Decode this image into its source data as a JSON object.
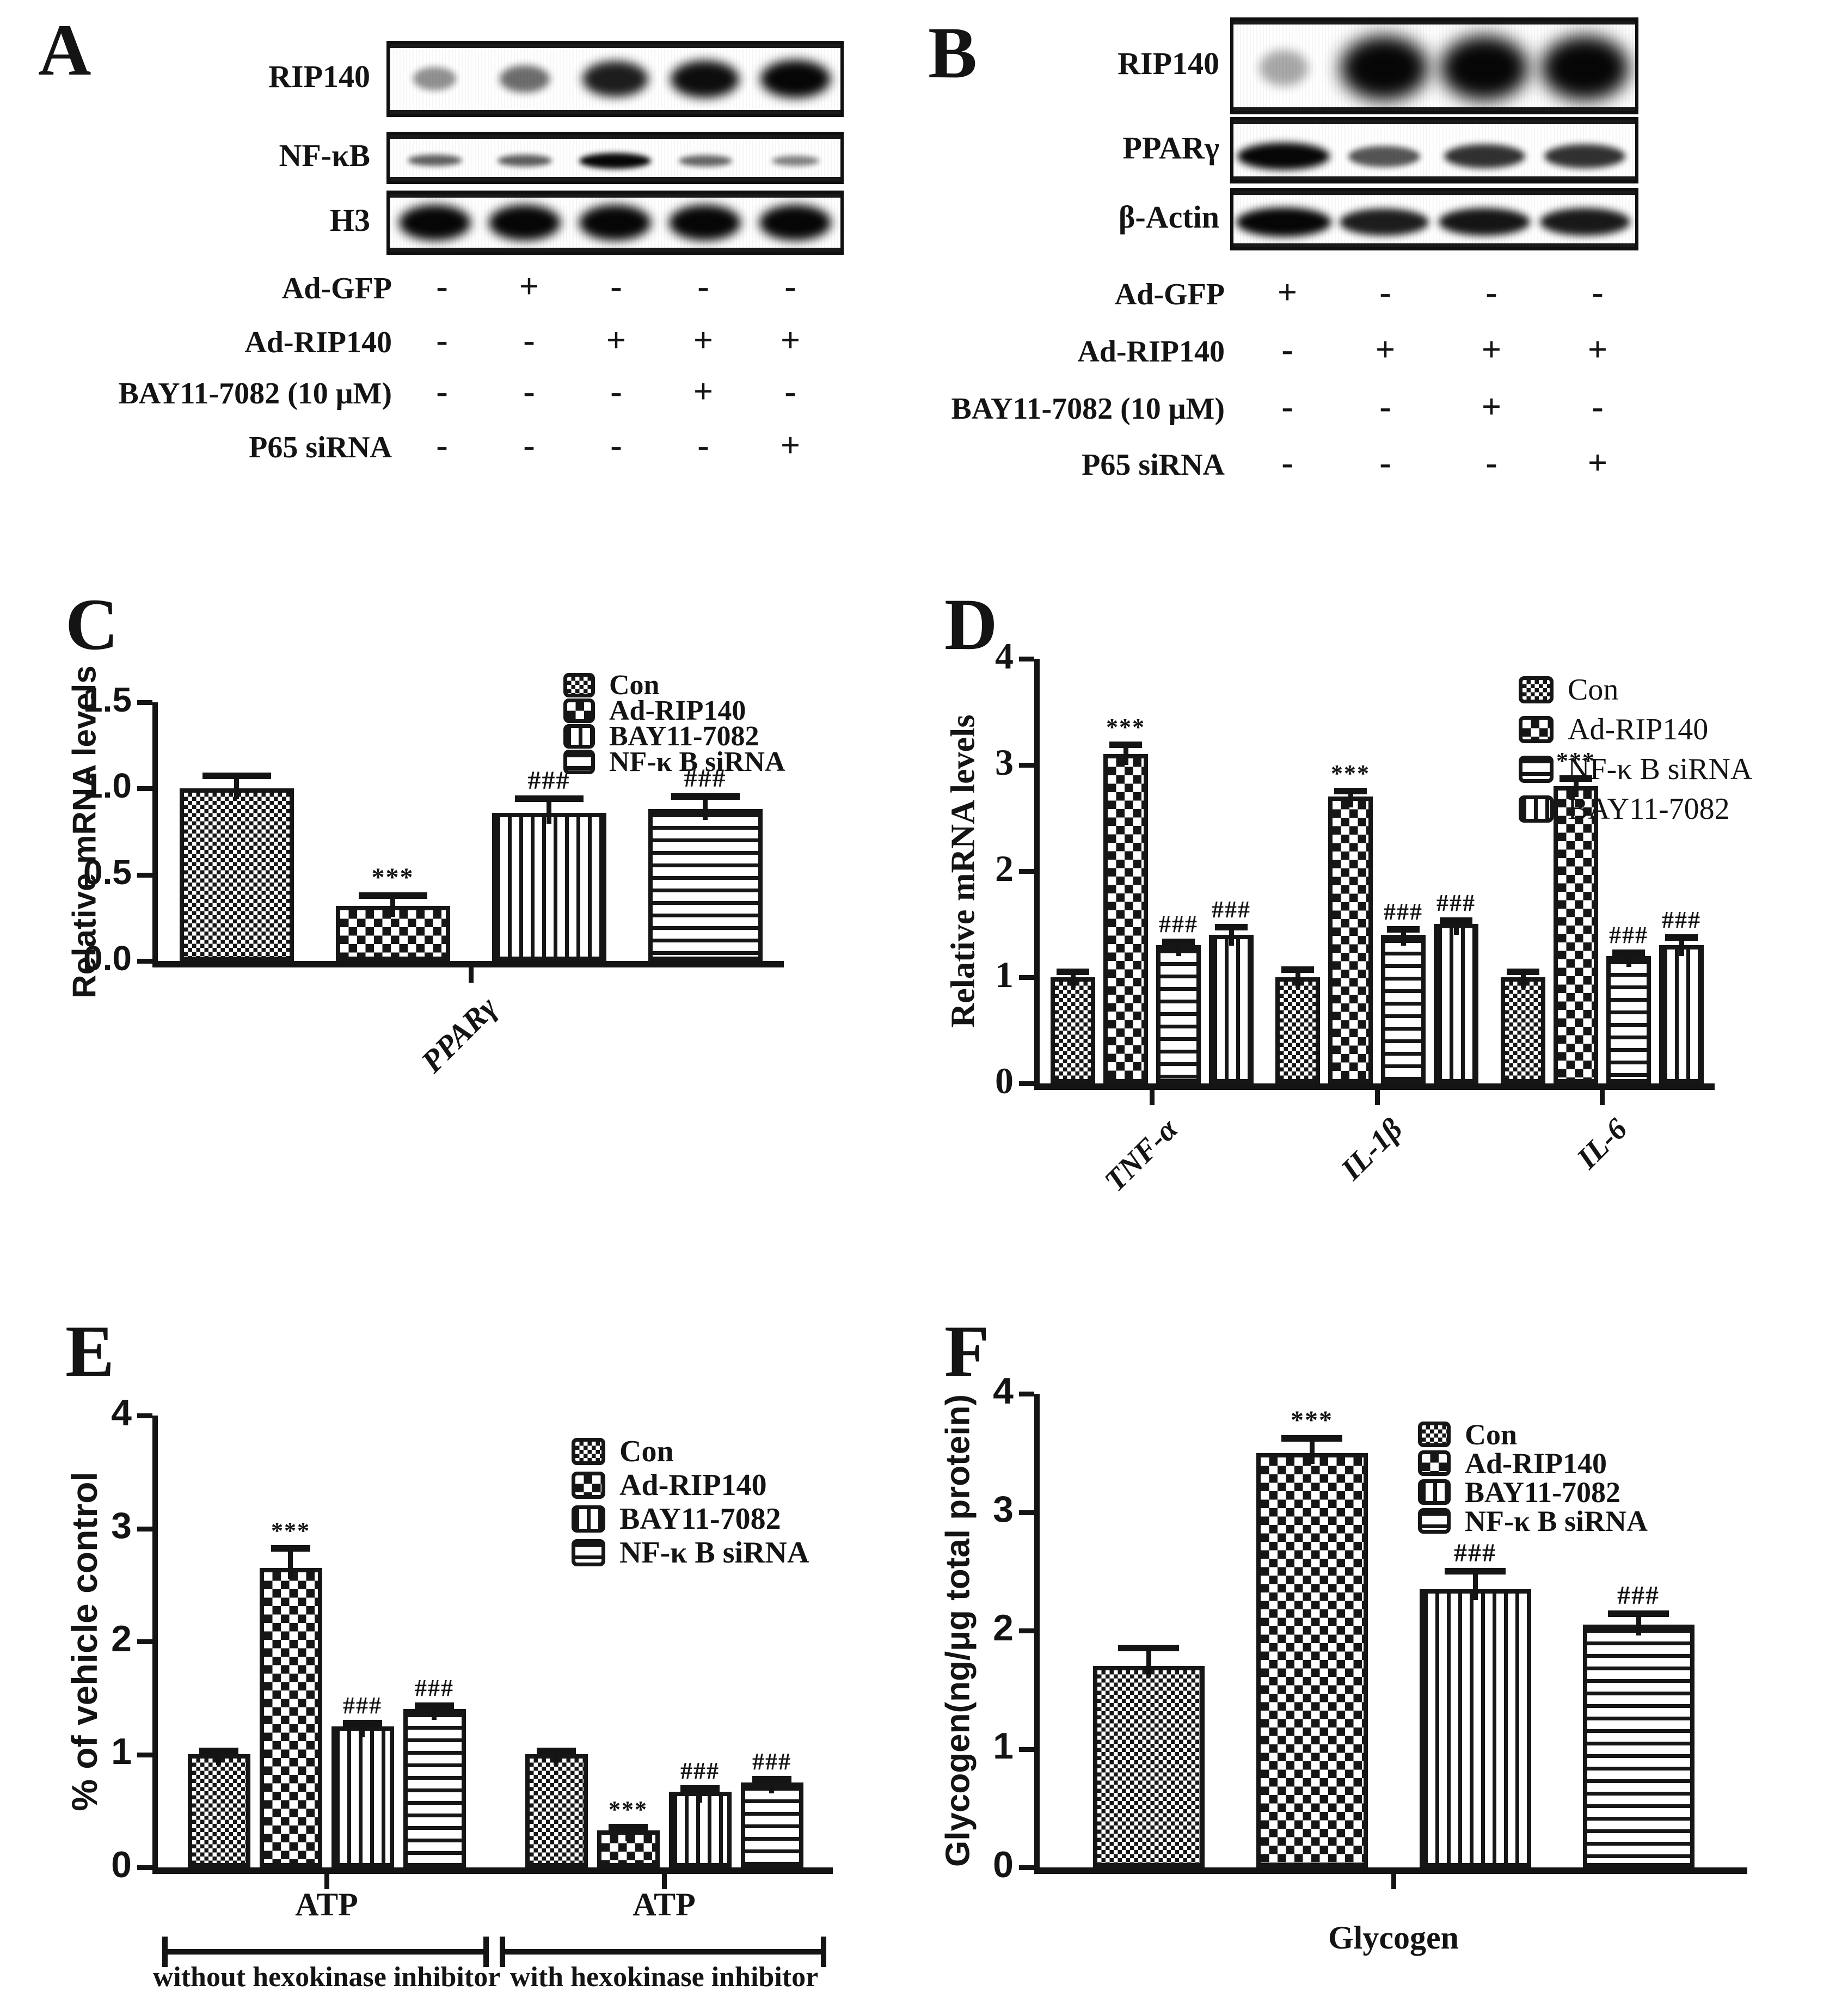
{
  "figure": {
    "background": "#ffffff",
    "ink": "#141414",
    "significance_up": "***",
    "significance_down": "###"
  },
  "panels": {
    "A": {
      "label": "A",
      "blots": [
        {
          "target": "RIP140",
          "lanes": [
            0.3,
            0.48,
            0.88,
            0.96,
            1.0
          ]
        },
        {
          "target": "NF-κB",
          "lanes": [
            0.55,
            0.56,
            1.0,
            0.52,
            0.38
          ]
        },
        {
          "target": "H3",
          "lanes": [
            1.0,
            1.0,
            1.0,
            1.0,
            1.0
          ]
        }
      ],
      "treatments": [
        {
          "label": "Ad-GFP",
          "values": [
            "-",
            "+",
            "-",
            "-",
            "-"
          ]
        },
        {
          "label": "Ad-RIP140",
          "values": [
            "-",
            "-",
            "+",
            "+",
            "+"
          ]
        },
        {
          "label": "BAY11-7082 (10 μM)",
          "values": [
            "-",
            "-",
            "-",
            "+",
            "-"
          ]
        },
        {
          "label": "P65 siRNA",
          "values": [
            "-",
            "-",
            "-",
            "-",
            "+"
          ]
        }
      ]
    },
    "B": {
      "label": "B",
      "blots": [
        {
          "target": "RIP140",
          "lanes": [
            0.18,
            1.0,
            1.0,
            1.0
          ]
        },
        {
          "target": "PPARγ",
          "lanes": [
            1.0,
            0.6,
            0.78,
            0.78
          ]
        },
        {
          "target": "β-Actin",
          "lanes": [
            1.0,
            0.88,
            0.92,
            0.9
          ]
        }
      ],
      "treatments": [
        {
          "label": "Ad-GFP",
          "values": [
            "+",
            "-",
            "-",
            "-"
          ]
        },
        {
          "label": "Ad-RIP140",
          "values": [
            "-",
            "+",
            "+",
            "+"
          ]
        },
        {
          "label": "BAY11-7082 (10 μM)",
          "values": [
            "-",
            "-",
            "+",
            "-"
          ]
        },
        {
          "label": "P65 siRNA",
          "values": [
            "-",
            "-",
            "-",
            "+"
          ]
        }
      ]
    },
    "C": {
      "label": "C"
    },
    "D": {
      "label": "D"
    },
    "E": {
      "label": "E"
    },
    "F": {
      "label": "F"
    }
  },
  "chart_data": [
    {
      "id": "C",
      "type": "bar",
      "ylabel": "Relative mRNA levels",
      "ylim": [
        0,
        1.5
      ],
      "yticks": [
        "0.0",
        "0.5",
        "1.0",
        "1.5"
      ],
      "grid": false,
      "categories": [
        "PPARγ"
      ],
      "series": [
        {
          "name": "Con",
          "pattern": "fine-check",
          "values": [
            1.0
          ],
          "errors": [
            0.09
          ],
          "sig": [
            ""
          ]
        },
        {
          "name": "Ad-RIP140",
          "pattern": "coarse-check",
          "values": [
            0.32
          ],
          "errors": [
            0.08
          ],
          "sig": [
            "***"
          ]
        },
        {
          "name": "BAY11-7082",
          "pattern": "vstripe",
          "values": [
            0.86
          ],
          "errors": [
            0.1
          ],
          "sig": [
            "###"
          ]
        },
        {
          "name": "NF-κ B siRNA",
          "pattern": "hstripe",
          "values": [
            0.88
          ],
          "errors": [
            0.09
          ],
          "sig": [
            "###"
          ]
        }
      ],
      "legend": [
        "Con",
        "Ad-RIP140",
        "BAY11-7082",
        "NF-κ B siRNA"
      ],
      "legend_position": "upper-right"
    },
    {
      "id": "D",
      "type": "bar",
      "ylabel": "Relative mRNA levels",
      "ylim": [
        0,
        4
      ],
      "yticks": [
        "0",
        "1",
        "2",
        "3",
        "4"
      ],
      "grid": false,
      "categories": [
        "TNF-α",
        "IL-1β",
        "IL-6"
      ],
      "series": [
        {
          "name": "Con",
          "pattern": "fine-check",
          "values": [
            1.0,
            1.0,
            1.0
          ],
          "errors": [
            0.08,
            0.1,
            0.08
          ],
          "sig": [
            "",
            "",
            ""
          ]
        },
        {
          "name": "Ad-RIP140",
          "pattern": "coarse-check",
          "values": [
            3.1,
            2.7,
            2.8
          ],
          "errors": [
            0.12,
            0.08,
            0.1
          ],
          "sig": [
            "***",
            "***",
            "***"
          ]
        },
        {
          "name": "NF-κ B siRNA",
          "pattern": "hstripe",
          "values": [
            1.3,
            1.4,
            1.2
          ],
          "errors": [
            0.06,
            0.08,
            0.06
          ],
          "sig": [
            "###",
            "###",
            "###"
          ]
        },
        {
          "name": "BAY11-7082",
          "pattern": "vstripe",
          "values": [
            1.4,
            1.5,
            1.3
          ],
          "errors": [
            0.1,
            0.06,
            0.1
          ],
          "sig": [
            "###",
            "###",
            "###"
          ]
        }
      ],
      "legend": [
        "Con",
        "Ad-RIP140",
        "NF-κ B siRNA",
        "BAY11-7082"
      ],
      "legend_position": "upper-right"
    },
    {
      "id": "E",
      "type": "bar",
      "ylabel": "% of vehicle control",
      "ylim": [
        0,
        4
      ],
      "yticks": [
        "0",
        "1",
        "2",
        "3",
        "4"
      ],
      "grid": false,
      "categories": [
        "ATP",
        "ATP"
      ],
      "group_annotations": [
        "without hexokinase inhibitor",
        "with hexokinase inhibitor"
      ],
      "series": [
        {
          "name": "Con",
          "pattern": "fine-check",
          "values": [
            1.0,
            1.0
          ],
          "errors": [
            0.02,
            0.02
          ],
          "sig": [
            "",
            ""
          ]
        },
        {
          "name": "Ad-RIP140",
          "pattern": "coarse-check",
          "values": [
            2.65,
            0.33
          ],
          "errors": [
            0.2,
            0.05
          ],
          "sig": [
            "***",
            "***"
          ]
        },
        {
          "name": "BAY11-7082",
          "pattern": "vstripe",
          "values": [
            1.25,
            0.67
          ],
          "errors": [
            0.05,
            0.04
          ],
          "sig": [
            "###",
            "###"
          ]
        },
        {
          "name": "NF-κ B siRNA",
          "pattern": "hstripe",
          "values": [
            1.4,
            0.75
          ],
          "errors": [
            0.04,
            0.04
          ],
          "sig": [
            "###",
            "###"
          ]
        }
      ],
      "legend": [
        "Con",
        "Ad-RIP140",
        "BAY11-7082",
        "NF-κ B siRNA"
      ],
      "legend_position": "upper-right"
    },
    {
      "id": "F",
      "type": "bar",
      "ylabel": "Glycogen(ng/μg total protein)",
      "ylim": [
        0,
        4
      ],
      "yticks": [
        "0",
        "1",
        "2",
        "3",
        "4"
      ],
      "grid": false,
      "categories": [
        "Glycogen"
      ],
      "series": [
        {
          "name": "Con",
          "pattern": "fine-check",
          "values": [
            1.7
          ],
          "errors": [
            0.18
          ],
          "sig": [
            ""
          ]
        },
        {
          "name": "Ad-RIP140",
          "pattern": "coarse-check",
          "values": [
            3.5
          ],
          "errors": [
            0.15
          ],
          "sig": [
            "***"
          ]
        },
        {
          "name": "BAY11-7082",
          "pattern": "vstripe",
          "values": [
            2.35
          ],
          "errors": [
            0.18
          ],
          "sig": [
            "###"
          ]
        },
        {
          "name": "NF-κ B siRNA",
          "pattern": "hstripe",
          "values": [
            2.05
          ],
          "errors": [
            0.12
          ],
          "sig": [
            "###"
          ]
        }
      ],
      "legend": [
        "Con",
        "Ad-RIP140",
        "BAY11-7082",
        "NF-κ B siRNA"
      ],
      "legend_position": "upper-right"
    }
  ]
}
